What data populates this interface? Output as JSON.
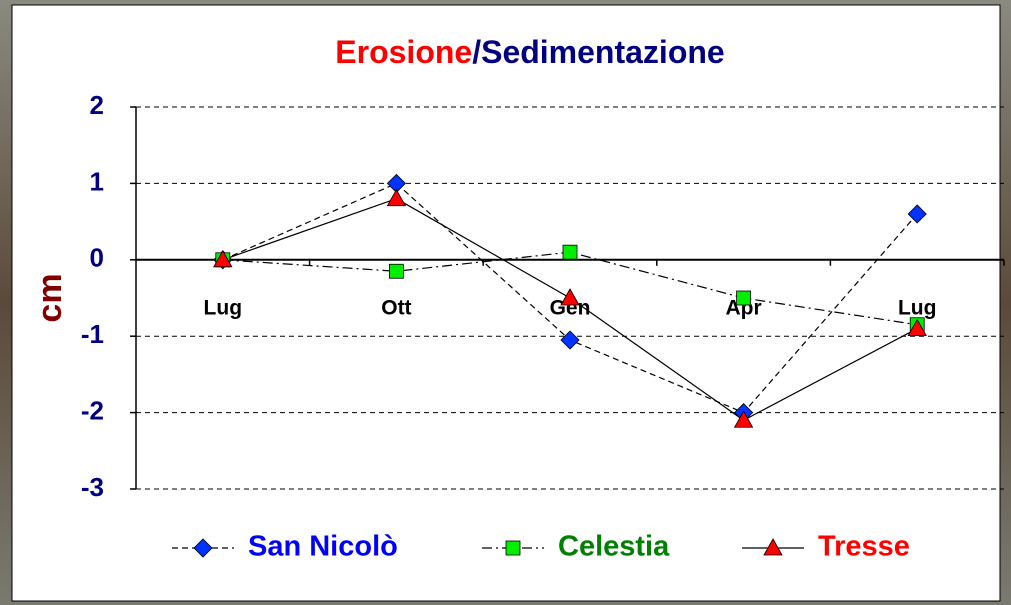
{
  "chart_data": {
    "type": "line",
    "title_parts": [
      {
        "text": "Erosione",
        "color": "#ff0000"
      },
      {
        "text": "/Sedimentazione",
        "color": "#000080"
      }
    ],
    "y_label": "cm",
    "y_label_color": "#800000",
    "categories": [
      "Lug",
      "Ott",
      "Gen",
      "Apr",
      "Lug"
    ],
    "series": [
      {
        "name": "San Nicolò",
        "color": "#0033ff",
        "text_color": "#0000ff",
        "marker": "diamond",
        "line_style": "dashed",
        "values": [
          0,
          1,
          -1.05,
          -2,
          0.6
        ]
      },
      {
        "name": "Celestia",
        "color": "#00ee00",
        "text_color": "#008000",
        "marker": "square",
        "line_style": "dashdot",
        "values": [
          0,
          -0.15,
          0.1,
          -0.5,
          -0.85
        ]
      },
      {
        "name": "Tresse",
        "color": "#ff0000",
        "text_color": "#ff0000",
        "marker": "triangle",
        "line_style": "solid",
        "values": [
          0,
          0.8,
          -0.5,
          -2.1,
          -0.9
        ]
      }
    ],
    "ylim": [
      -3,
      2
    ],
    "yticks": [
      -3,
      -2,
      -1,
      0,
      1,
      2
    ],
    "grid": true
  }
}
